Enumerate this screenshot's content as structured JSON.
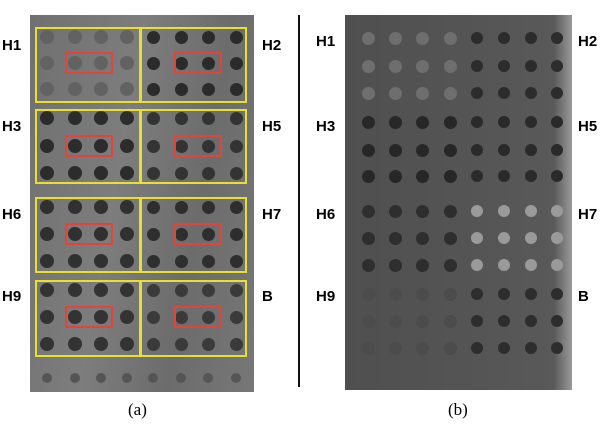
{
  "panel_a": {
    "labels_left": [
      "H1",
      "H3",
      "H6",
      "H9"
    ],
    "labels_right": [
      "H2",
      "H5",
      "H7",
      "B"
    ],
    "caption": "(a)"
  },
  "panel_b": {
    "labels_left": [
      "H1",
      "H3",
      "H6",
      "H9"
    ],
    "labels_right": [
      "H2",
      "H5",
      "H7",
      "B"
    ],
    "caption": "(b)"
  },
  "colors": {
    "highlight_box": "#e8e02a",
    "region_box": "#e0443a"
  }
}
